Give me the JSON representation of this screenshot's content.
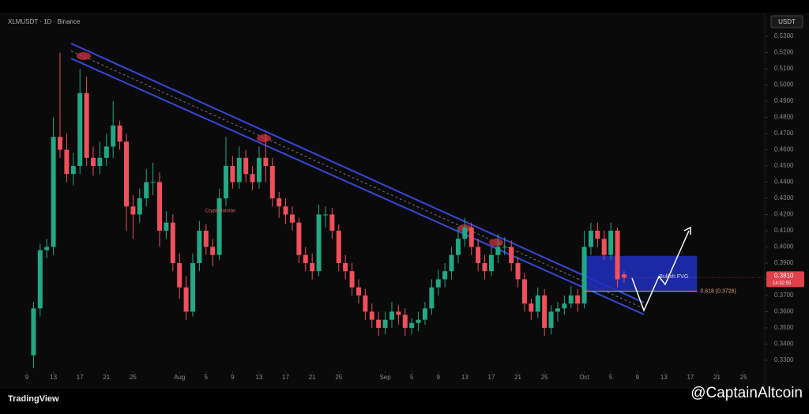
{
  "chart_data": {
    "type": "candlestick",
    "title": "XLMUSDT · 1D · Binance",
    "unit": "USDT",
    "x": [
      1,
      2,
      3,
      4,
      5,
      6,
      7,
      8,
      9,
      10,
      11,
      12,
      13,
      14,
      15,
      16,
      17,
      18,
      19,
      20,
      21,
      22,
      23,
      24,
      25,
      26,
      27,
      28,
      29,
      30,
      31,
      32,
      33,
      34,
      35,
      36,
      37,
      38,
      39,
      40,
      41,
      42,
      43,
      44,
      45,
      46,
      47,
      48,
      49,
      50,
      51,
      52,
      53,
      54,
      55,
      56,
      57,
      58,
      59,
      60,
      61,
      62,
      63,
      64,
      65,
      66,
      67,
      68,
      69,
      70,
      71,
      72,
      73,
      74,
      75,
      76,
      77,
      78,
      79,
      80,
      81,
      82,
      83,
      84,
      85,
      86,
      87,
      88,
      89,
      90
    ],
    "candles": [
      [
        0.333,
        0.366,
        0.325,
        0.362
      ],
      [
        0.362,
        0.402,
        0.357,
        0.398
      ],
      [
        0.398,
        0.405,
        0.393,
        0.4
      ],
      [
        0.4,
        0.48,
        0.395,
        0.468
      ],
      [
        0.468,
        0.52,
        0.455,
        0.46
      ],
      [
        0.46,
        0.47,
        0.44,
        0.445
      ],
      [
        0.445,
        0.458,
        0.438,
        0.45
      ],
      [
        0.45,
        0.51,
        0.445,
        0.495
      ],
      [
        0.495,
        0.505,
        0.45,
        0.455
      ],
      [
        0.455,
        0.462,
        0.444,
        0.45
      ],
      [
        0.45,
        0.465,
        0.445,
        0.455
      ],
      [
        0.455,
        0.47,
        0.45,
        0.462
      ],
      [
        0.462,
        0.49,
        0.455,
        0.475
      ],
      [
        0.475,
        0.478,
        0.46,
        0.465
      ],
      [
        0.465,
        0.47,
        0.41,
        0.425
      ],
      [
        0.425,
        0.432,
        0.405,
        0.42
      ],
      [
        0.42,
        0.436,
        0.415,
        0.43
      ],
      [
        0.43,
        0.448,
        0.425,
        0.44
      ],
      [
        0.44,
        0.452,
        0.432,
        0.44
      ],
      [
        0.44,
        0.446,
        0.4,
        0.41
      ],
      [
        0.41,
        0.422,
        0.405,
        0.415
      ],
      [
        0.415,
        0.42,
        0.385,
        0.39
      ],
      [
        0.39,
        0.396,
        0.368,
        0.375
      ],
      [
        0.375,
        0.382,
        0.355,
        0.36
      ],
      [
        0.36,
        0.396,
        0.357,
        0.39
      ],
      [
        0.39,
        0.416,
        0.385,
        0.41
      ],
      [
        0.41,
        0.414,
        0.395,
        0.4
      ],
      [
        0.4,
        0.405,
        0.388,
        0.395
      ],
      [
        0.395,
        0.436,
        0.392,
        0.43
      ],
      [
        0.43,
        0.468,
        0.425,
        0.45
      ],
      [
        0.45,
        0.456,
        0.436,
        0.44
      ],
      [
        0.44,
        0.462,
        0.436,
        0.455
      ],
      [
        0.455,
        0.46,
        0.44,
        0.445
      ],
      [
        0.445,
        0.45,
        0.435,
        0.44
      ],
      [
        0.44,
        0.462,
        0.436,
        0.455
      ],
      [
        0.455,
        0.47,
        0.44,
        0.45
      ],
      [
        0.45,
        0.455,
        0.425,
        0.43
      ],
      [
        0.43,
        0.434,
        0.418,
        0.425
      ],
      [
        0.425,
        0.43,
        0.414,
        0.42
      ],
      [
        0.42,
        0.425,
        0.41,
        0.415
      ],
      [
        0.415,
        0.418,
        0.39,
        0.395
      ],
      [
        0.395,
        0.4,
        0.385,
        0.39
      ],
      [
        0.39,
        0.396,
        0.38,
        0.385
      ],
      [
        0.385,
        0.426,
        0.382,
        0.42
      ],
      [
        0.42,
        0.425,
        0.412,
        0.42
      ],
      [
        0.42,
        0.424,
        0.405,
        0.41
      ],
      [
        0.41,
        0.414,
        0.385,
        0.39
      ],
      [
        0.39,
        0.395,
        0.38,
        0.385
      ],
      [
        0.385,
        0.39,
        0.37,
        0.375
      ],
      [
        0.375,
        0.38,
        0.365,
        0.37
      ],
      [
        0.37,
        0.374,
        0.355,
        0.36
      ],
      [
        0.36,
        0.365,
        0.35,
        0.355
      ],
      [
        0.355,
        0.36,
        0.345,
        0.35
      ],
      [
        0.35,
        0.36,
        0.346,
        0.355
      ],
      [
        0.355,
        0.366,
        0.35,
        0.36
      ],
      [
        0.36,
        0.364,
        0.352,
        0.358
      ],
      [
        0.358,
        0.362,
        0.345,
        0.35
      ],
      [
        0.35,
        0.356,
        0.346,
        0.353
      ],
      [
        0.353,
        0.36,
        0.348,
        0.355
      ],
      [
        0.355,
        0.366,
        0.352,
        0.362
      ],
      [
        0.362,
        0.38,
        0.358,
        0.375
      ],
      [
        0.375,
        0.386,
        0.37,
        0.38
      ],
      [
        0.38,
        0.39,
        0.375,
        0.385
      ],
      [
        0.385,
        0.4,
        0.38,
        0.395
      ],
      [
        0.395,
        0.412,
        0.39,
        0.405
      ],
      [
        0.405,
        0.418,
        0.4,
        0.412
      ],
      [
        0.412,
        0.415,
        0.395,
        0.4
      ],
      [
        0.4,
        0.405,
        0.385,
        0.39
      ],
      [
        0.39,
        0.395,
        0.38,
        0.385
      ],
      [
        0.385,
        0.4,
        0.382,
        0.395
      ],
      [
        0.395,
        0.408,
        0.39,
        0.4
      ],
      [
        0.4,
        0.406,
        0.395,
        0.4
      ],
      [
        0.4,
        0.404,
        0.385,
        0.39
      ],
      [
        0.39,
        0.394,
        0.375,
        0.38
      ],
      [
        0.38,
        0.384,
        0.36,
        0.365
      ],
      [
        0.365,
        0.368,
        0.355,
        0.36
      ],
      [
        0.36,
        0.375,
        0.356,
        0.37
      ],
      [
        0.37,
        0.374,
        0.345,
        0.35
      ],
      [
        0.35,
        0.364,
        0.346,
        0.36
      ],
      [
        0.36,
        0.366,
        0.354,
        0.362
      ],
      [
        0.362,
        0.37,
        0.358,
        0.365
      ],
      [
        0.365,
        0.376,
        0.362,
        0.37
      ],
      [
        0.37,
        0.374,
        0.36,
        0.365
      ],
      [
        0.365,
        0.41,
        0.362,
        0.4
      ],
      [
        0.4,
        0.415,
        0.395,
        0.41
      ],
      [
        0.41,
        0.415,
        0.4,
        0.405
      ],
      [
        0.405,
        0.41,
        0.392,
        0.395
      ],
      [
        0.395,
        0.415,
        0.392,
        0.41
      ],
      [
        0.41,
        0.412,
        0.375,
        0.38
      ],
      [
        0.383,
        0.385,
        0.378,
        0.381
      ]
    ],
    "up_color": "#22a884",
    "down_color": "#f0505a",
    "xlim": [
      -4.05,
      111.2
    ],
    "xticks": [
      {
        "value": 0,
        "label": "9"
      },
      {
        "value": 4,
        "label": "13"
      },
      {
        "value": 8,
        "label": "17"
      },
      {
        "value": 12,
        "label": "21"
      },
      {
        "value": 16,
        "label": "25"
      },
      {
        "value": 23,
        "label": "Aug"
      },
      {
        "value": 27,
        "label": "5"
      },
      {
        "value": 31,
        "label": "9"
      },
      {
        "value": 35,
        "label": "13"
      },
      {
        "value": 39,
        "label": "17"
      },
      {
        "value": 43,
        "label": "21"
      },
      {
        "value": 47,
        "label": "25"
      },
      {
        "value": 54,
        "label": "Sep"
      },
      {
        "value": 58,
        "label": "5"
      },
      {
        "value": 62,
        "label": "9"
      },
      {
        "value": 66,
        "label": "13"
      },
      {
        "value": 70,
        "label": "17"
      },
      {
        "value": 74,
        "label": "21"
      },
      {
        "value": 78,
        "label": "25"
      },
      {
        "value": 84,
        "label": "Oct"
      },
      {
        "value": 88,
        "label": "5"
      },
      {
        "value": 92,
        "label": "9"
      },
      {
        "value": 96,
        "label": "13"
      },
      {
        "value": 100,
        "label": "17"
      },
      {
        "value": 104,
        "label": "21"
      },
      {
        "value": 108,
        "label": "25"
      }
    ],
    "ylim": [
      0.3241,
      0.5447
    ],
    "yticks": [
      {
        "value": 0.33,
        "label": "0.3300"
      },
      {
        "value": 0.34,
        "label": "0.3400"
      },
      {
        "value": 0.35,
        "label": "0.3500"
      },
      {
        "value": 0.36,
        "label": "0.3600"
      },
      {
        "value": 0.37,
        "label": "0.3700"
      },
      {
        "value": 0.38,
        "label": "0.3800"
      },
      {
        "value": 0.39,
        "label": "0.3900"
      },
      {
        "value": 0.4,
        "label": "0.4000"
      },
      {
        "value": 0.41,
        "label": "0.4100"
      },
      {
        "value": 0.42,
        "label": "0.4200"
      },
      {
        "value": 0.43,
        "label": "0.4300"
      },
      {
        "value": 0.44,
        "label": "0.4400"
      },
      {
        "value": 0.45,
        "label": "0.4500"
      },
      {
        "value": 0.46,
        "label": "0.4600"
      },
      {
        "value": 0.47,
        "label": "0.4700"
      },
      {
        "value": 0.48,
        "label": "0.4800"
      },
      {
        "value": 0.49,
        "label": "0.4900"
      },
      {
        "value": 0.5,
        "label": "0.5000"
      },
      {
        "value": 0.51,
        "label": "0.5100"
      },
      {
        "value": 0.52,
        "label": "0.5200"
      },
      {
        "value": 0.53,
        "label": "0.5300"
      }
    ],
    "fvg": {
      "label": "Bullish FVG",
      "top": 0.3945,
      "bottom": 0.3726
    },
    "fib": {
      "value": 0.3726,
      "label": "0.618 (0.3726)"
    },
    "last_price": {
      "value": 0.381,
      "label": "0.3810"
    },
    "countdown": "14:32:55",
    "annotation": "CryptoBatman"
  },
  "branding": {
    "platform": "TradingView",
    "credit": "@CaptainAltcoin"
  }
}
